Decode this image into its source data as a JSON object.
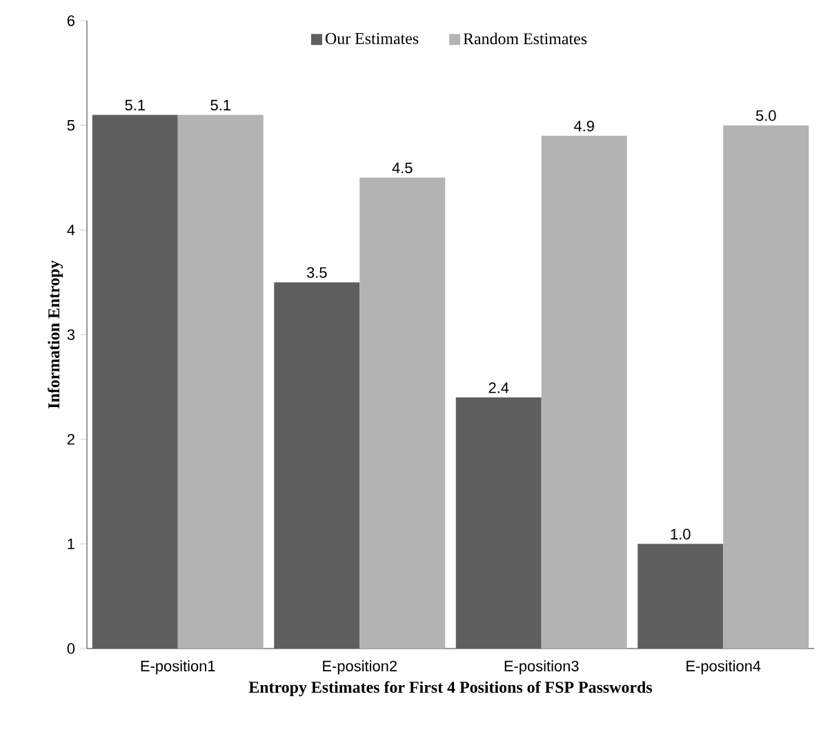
{
  "chart_data": {
    "type": "bar",
    "xlabel": "Entropy Estimates for First 4 Positions of FSP Passwords",
    "ylabel": "Information Entropy",
    "categories": [
      "E-position1",
      "E-position2",
      "E-position3",
      "E-position4"
    ],
    "series": [
      {
        "name": "Our Estimates",
        "color": "#5f5f5f",
        "values": [
          5.1,
          3.5,
          2.4,
          1.0
        ],
        "value_labels": [
          "5.1",
          "3.5",
          "2.4",
          "1.0"
        ]
      },
      {
        "name": "Random Estimates",
        "color": "#b3b3b3",
        "values": [
          5.1,
          4.5,
          4.9,
          5.0
        ],
        "value_labels": [
          "5.1",
          "4.5",
          "4.9",
          "5.0"
        ]
      }
    ],
    "ylim": [
      0,
      6
    ],
    "yticks": [
      0,
      1,
      2,
      3,
      4,
      5,
      6
    ],
    "legend": "top",
    "grid": false
  }
}
